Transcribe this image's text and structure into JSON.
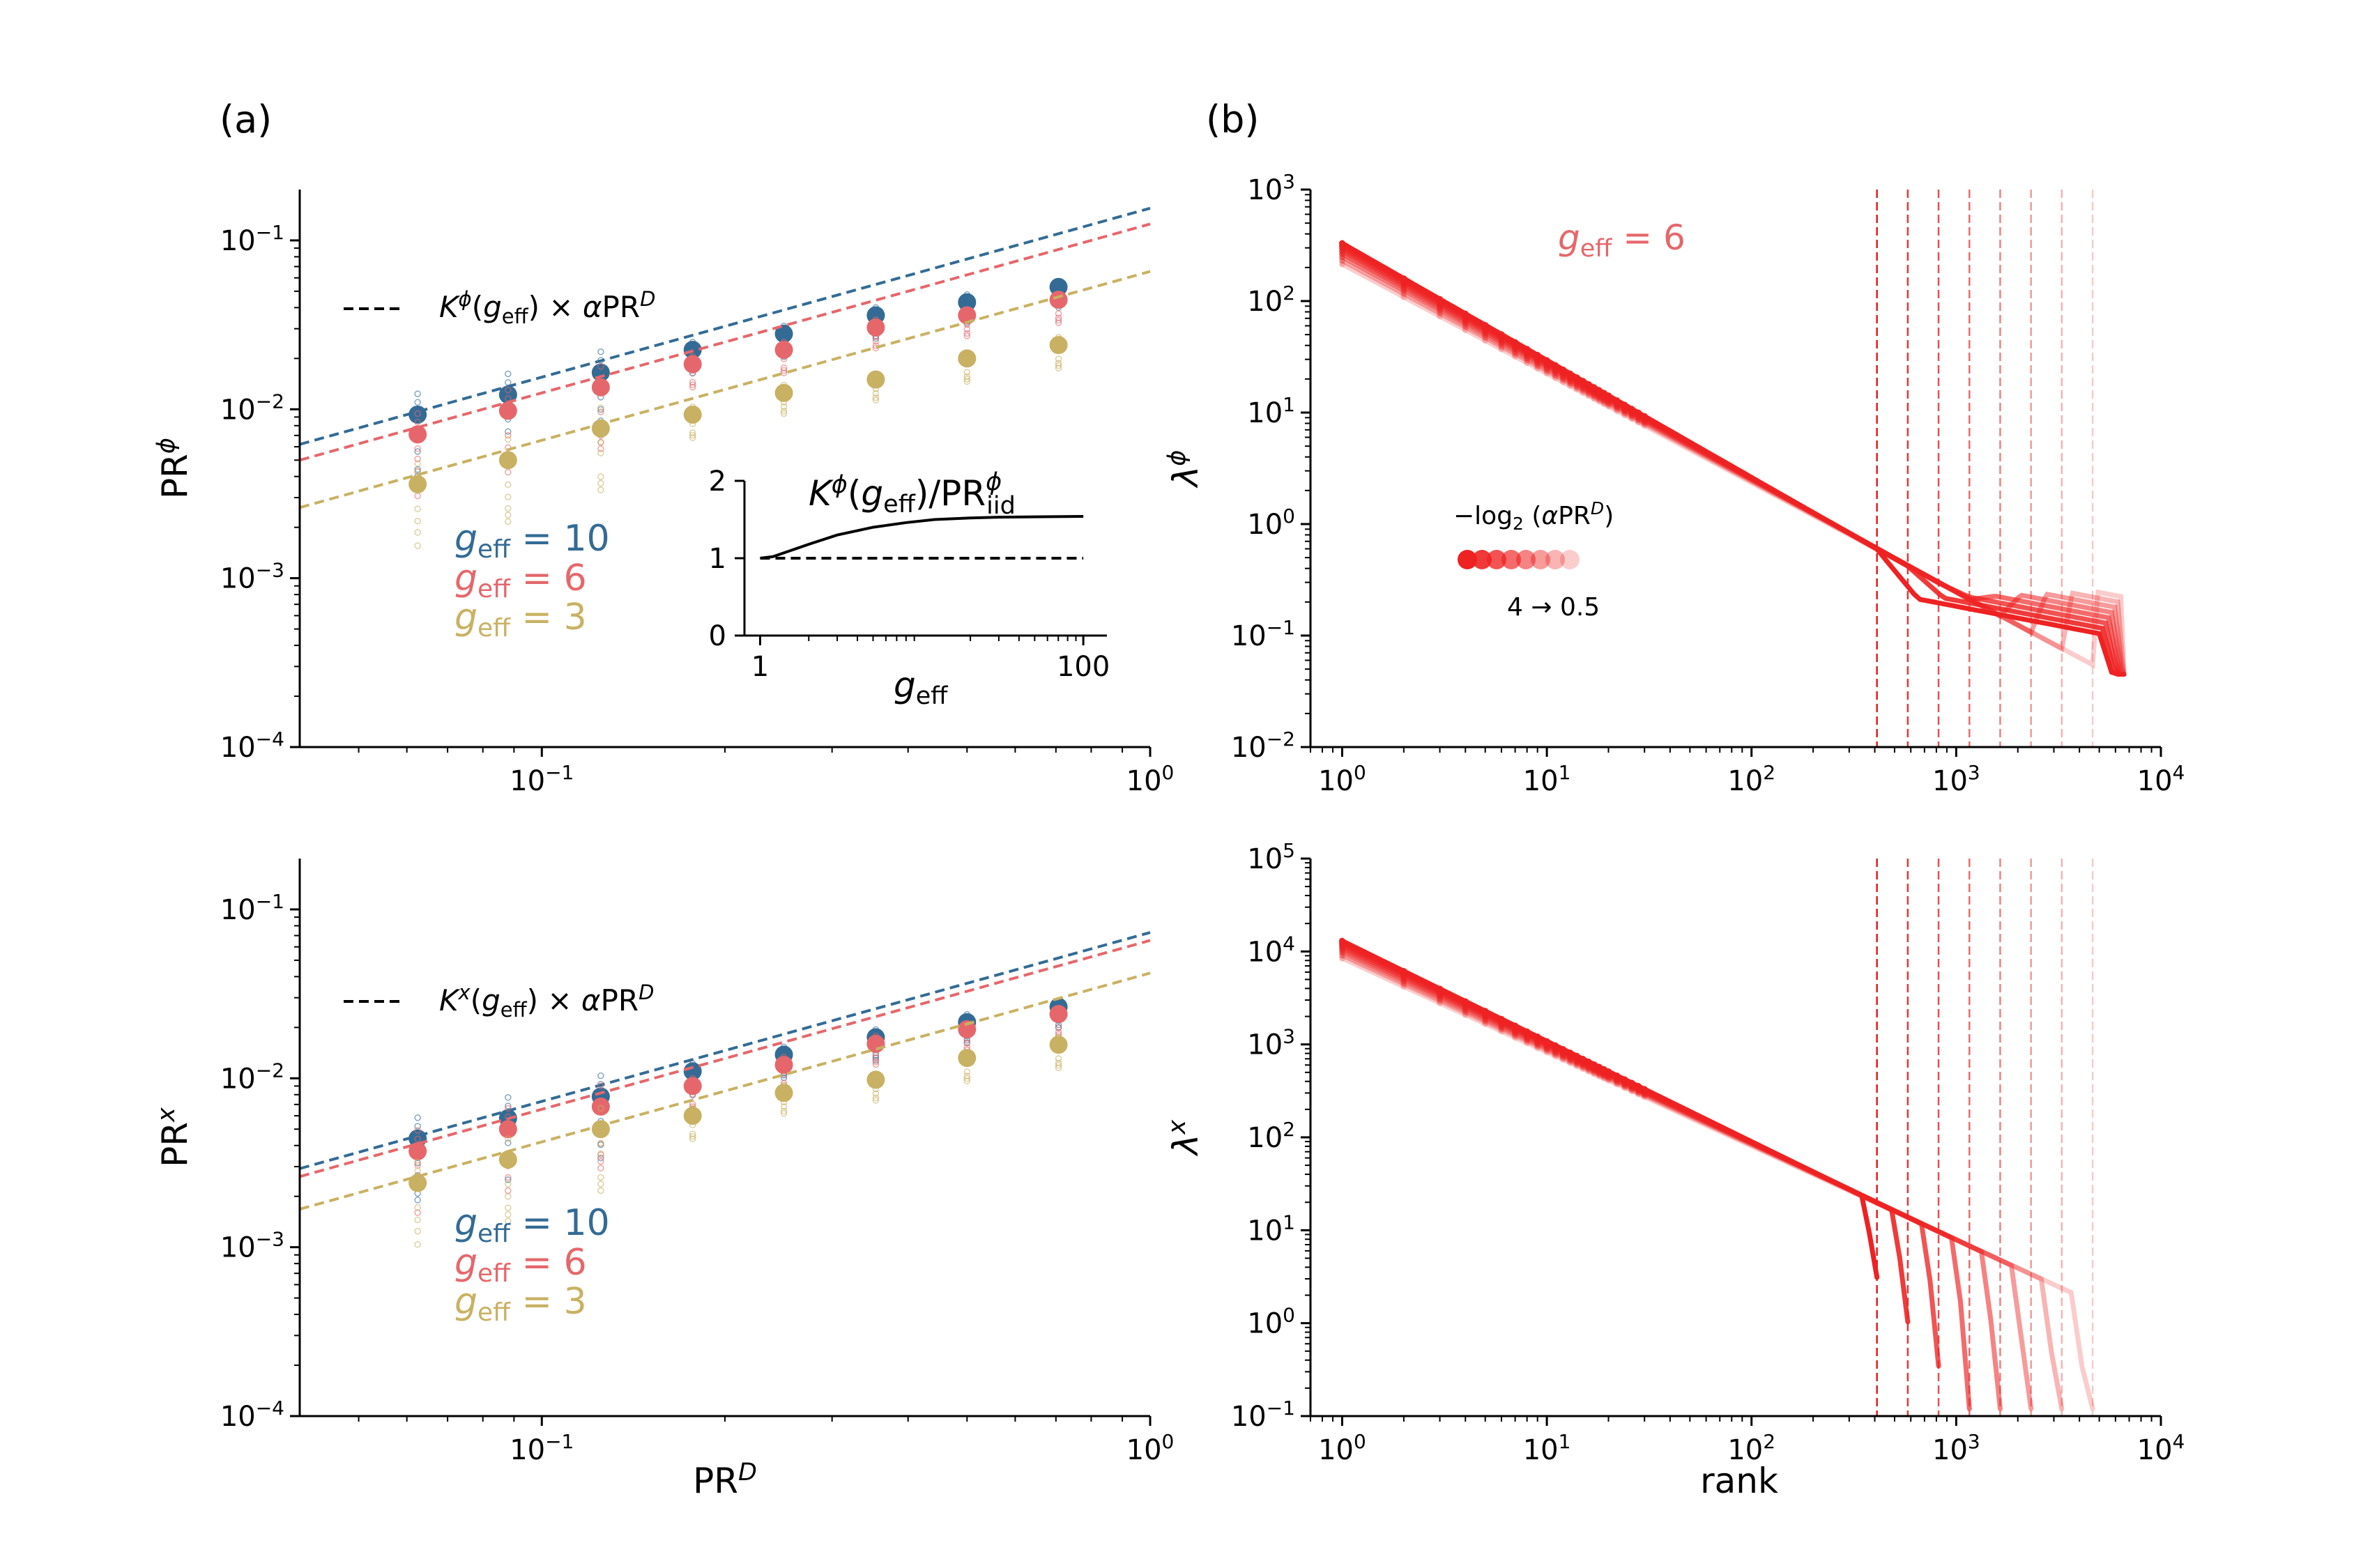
{
  "panel_labels": {
    "a": "(a)",
    "b": "(b)"
  },
  "colors": {
    "g10": "#336b95",
    "g6": "#e5676b",
    "g3": "#c8b162",
    "spectrum": "#ee2222"
  },
  "chart_data": [
    {
      "id": "a_top",
      "type": "scatter",
      "xscale": "log",
      "yscale": "log",
      "xlim": [
        0.04,
        1.0
      ],
      "ylim": [
        0.0001,
        0.2
      ],
      "xlabel": "",
      "ylabel": "PR^φ",
      "xticks": [
        0.1,
        1.0
      ],
      "xtick_labels": [
        "10^-1",
        "10^0"
      ],
      "yticks": [
        0.0001,
        0.001,
        0.01,
        0.1
      ],
      "ytick_labels": [
        "10^-4",
        "10^-3",
        "10^-2",
        "10^-1"
      ],
      "x": [
        0.0625,
        0.088,
        0.125,
        0.177,
        0.25,
        0.354,
        0.5,
        0.707
      ],
      "series": [
        {
          "name": "g_eff = 10",
          "color": "#336b95",
          "y": [
            0.0093,
            0.0122,
            0.0165,
            0.0225,
            0.028,
            0.036,
            0.043,
            0.053
          ],
          "fit_coef": 0.155
        },
        {
          "name": "g_eff = 6",
          "color": "#e5676b",
          "y": [
            0.0071,
            0.0098,
            0.0135,
            0.0185,
            0.0225,
            0.0305,
            0.036,
            0.0445
          ],
          "fit_coef": 0.125
        },
        {
          "name": "g_eff = 3",
          "color": "#c8b162",
          "y": [
            0.0036,
            0.005,
            0.0077,
            0.0093,
            0.0125,
            0.015,
            0.02,
            0.024
          ],
          "fit_coef": 0.0655
        }
      ],
      "fit_legend": "K^φ(g_eff) × αPR^D",
      "inset": {
        "title": "K^φ(g_eff)/PR^φ_iid",
        "xlabel": "g_eff",
        "xlim": [
          0.8,
          140
        ],
        "ylim": [
          0,
          2
        ],
        "xtick_labels": [
          "1",
          "100"
        ],
        "ytick_labels": [
          "0",
          "1",
          "2"
        ],
        "curve": {
          "g": [
            1,
            1.2,
            1.5,
            2,
            3,
            5,
            8,
            12,
            20,
            30,
            50,
            100
          ],
          "ratio": [
            1.0,
            1.02,
            1.09,
            1.18,
            1.3,
            1.4,
            1.46,
            1.5,
            1.52,
            1.53,
            1.535,
            1.54
          ]
        },
        "baseline": 1.0
      }
    },
    {
      "id": "a_bottom",
      "type": "scatter",
      "xscale": "log",
      "yscale": "log",
      "xlim": [
        0.04,
        1.0
      ],
      "ylim": [
        0.0001,
        0.2
      ],
      "xlabel": "PR^D",
      "ylabel": "PR^x",
      "xticks": [
        0.1,
        1.0
      ],
      "xtick_labels": [
        "10^-1",
        "10^0"
      ],
      "yticks": [
        0.0001,
        0.001,
        0.01,
        0.1
      ],
      "ytick_labels": [
        "10^-4",
        "10^-3",
        "10^-2",
        "10^-1"
      ],
      "x": [
        0.0625,
        0.088,
        0.125,
        0.177,
        0.25,
        0.354,
        0.5,
        0.707
      ],
      "series": [
        {
          "name": "g_eff = 10",
          "color": "#336b95",
          "y": [
            0.0044,
            0.0058,
            0.0078,
            0.011,
            0.0138,
            0.0175,
            0.0215,
            0.0265
          ],
          "fit_coef": 0.073
        },
        {
          "name": "g_eff = 6",
          "color": "#e5676b",
          "y": [
            0.0037,
            0.005,
            0.0068,
            0.009,
            0.012,
            0.016,
            0.0195,
            0.024
          ],
          "fit_coef": 0.0655
        },
        {
          "name": "g_eff = 3",
          "color": "#c8b162",
          "y": [
            0.0024,
            0.0033,
            0.005,
            0.006,
            0.0082,
            0.0098,
            0.0132,
            0.0158
          ],
          "fit_coef": 0.042
        }
      ],
      "fit_legend": "K^x(g_eff) × αPR^D"
    },
    {
      "id": "b_top",
      "type": "scatter",
      "xscale": "log",
      "yscale": "log",
      "xlim": [
        0.7,
        10000
      ],
      "ylim": [
        0.01,
        1000
      ],
      "xlabel": "",
      "ylabel": "λ^φ",
      "xticks": [
        1,
        10,
        100,
        1000,
        10000
      ],
      "xtick_labels": [
        "10^0",
        "10^1",
        "10^2",
        "10^3",
        "10^4"
      ],
      "yticks": [
        0.01,
        0.1,
        1,
        10,
        100,
        1000
      ],
      "ytick_labels": [
        "10^-2",
        "10^-1",
        "10^0",
        "10^1",
        "10^2",
        "10^3"
      ],
      "annotation": "g_eff = 6",
      "colorbar_label": "−log₂ (αPR^D)",
      "colorbar_range": "4 → 0.5",
      "cutoffs": [
        410,
        580,
        820,
        1160,
        1640,
        2320,
        3280,
        4640
      ],
      "spectrum": {
        "lambda1": 330,
        "decay": 1.05,
        "knee_value": 0.25,
        "tail_end": 6600
      }
    },
    {
      "id": "b_bottom",
      "type": "scatter",
      "xscale": "log",
      "yscale": "log",
      "xlim": [
        0.7,
        10000
      ],
      "ylim": [
        0.1,
        100000
      ],
      "xlabel": "rank",
      "ylabel": "λ^x",
      "xticks": [
        1,
        10,
        100,
        1000,
        10000
      ],
      "xtick_labels": [
        "10^0",
        "10^1",
        "10^2",
        "10^3",
        "10^4"
      ],
      "yticks": [
        0.1,
        1,
        10,
        100,
        1000,
        10000,
        100000
      ],
      "ytick_labels": [
        "10^-1",
        "10^0",
        "10^1",
        "10^2",
        "10^3",
        "10^4",
        "10^5"
      ],
      "cutoffs": [
        410,
        580,
        820,
        1160,
        1640,
        2320,
        3280,
        4640
      ],
      "spectrum": {
        "lambda1": 13000,
        "decay": 1.08
      }
    }
  ]
}
